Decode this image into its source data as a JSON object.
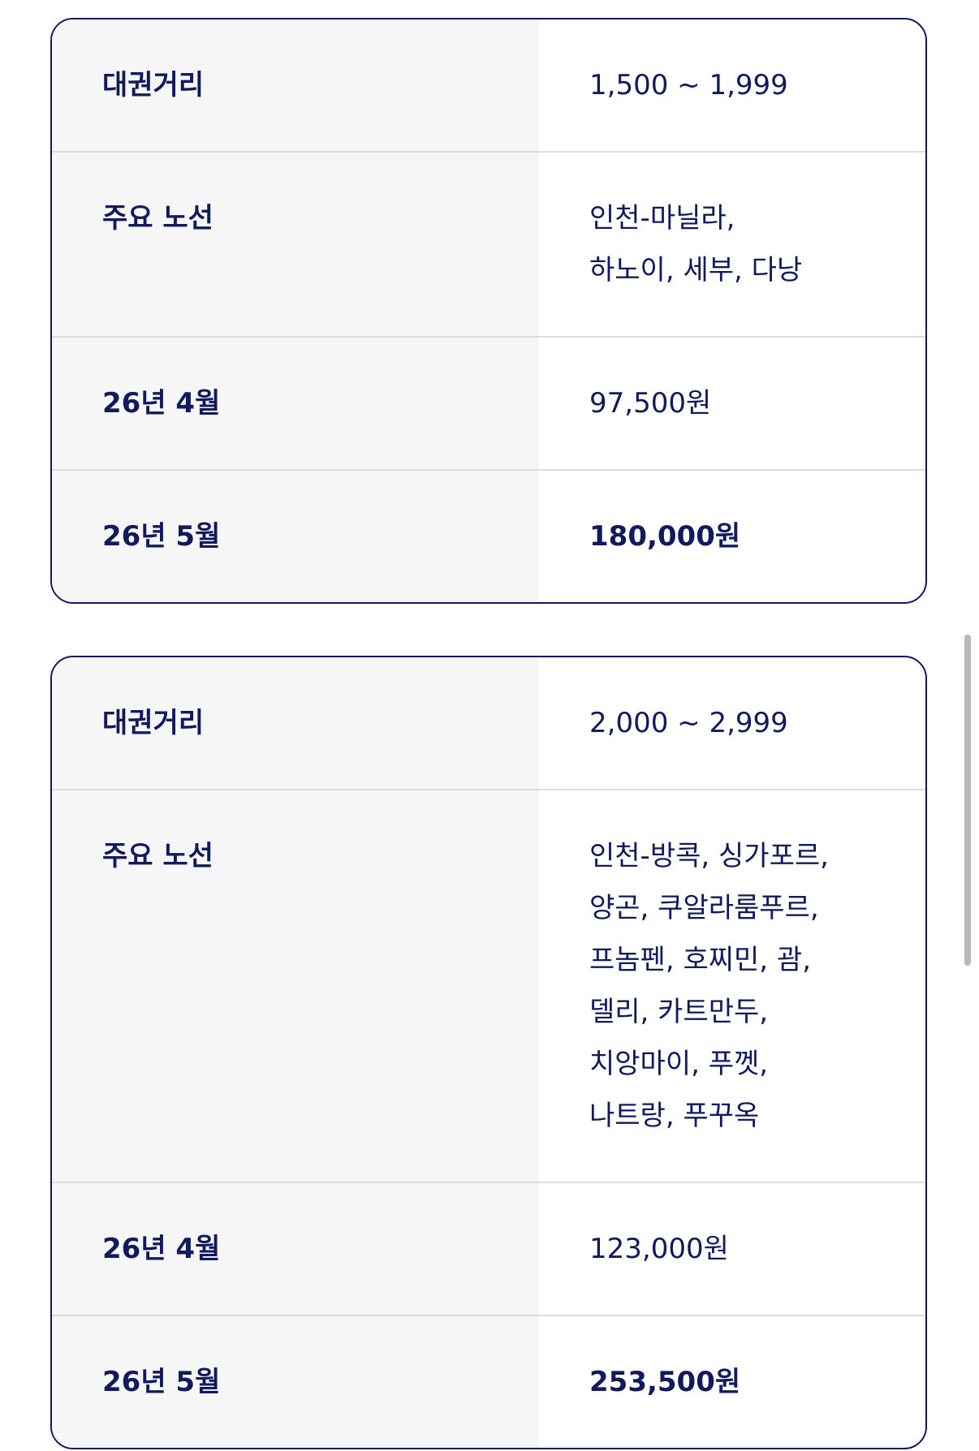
{
  "cards": [
    {
      "rows": [
        {
          "label": "대권거리",
          "value_lines": [
            "1,500 ~ 1,999"
          ],
          "bold": false
        },
        {
          "label": "주요 노선",
          "value_lines": [
            "인천-마닐라,",
            "하노이, 세부, 다낭"
          ],
          "bold": false
        },
        {
          "label": "26년 4월",
          "value_lines": [
            "97,500원"
          ],
          "bold": false
        },
        {
          "label": "26년 5월",
          "value_lines": [
            "180,000원"
          ],
          "bold": true
        }
      ]
    },
    {
      "rows": [
        {
          "label": "대권거리",
          "value_lines": [
            "2,000 ~ 2,999"
          ],
          "bold": false
        },
        {
          "label": "주요 노선",
          "value_lines": [
            "인천-방콕, 싱가포르,",
            "양곤, 쿠알라룸푸르,",
            "프놈펜, 호찌민, 괌,",
            "델리, 카트만두,",
            "치앙마이, 푸껫,",
            "나트랑, 푸꾸옥"
          ],
          "bold": false
        },
        {
          "label": "26년 4월",
          "value_lines": [
            "123,000원"
          ],
          "bold": false
        },
        {
          "label": "26년 5월",
          "value_lines": [
            "253,500원"
          ],
          "bold": true
        }
      ]
    }
  ],
  "colors": {
    "text": "#111a5c",
    "label_bg": "#f6f6f6",
    "divider": "#dcdcdc",
    "border": "#111a5c"
  }
}
